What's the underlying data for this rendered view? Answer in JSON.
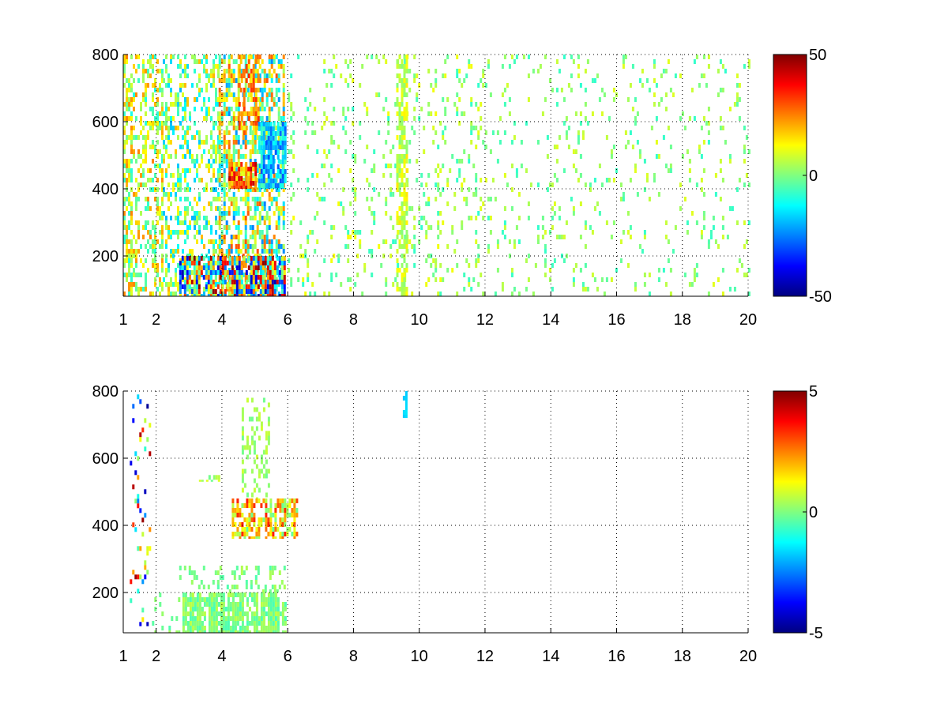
{
  "chart_data": [
    {
      "type": "heatmap",
      "title": "",
      "xlabel": "",
      "ylabel": "",
      "xlim": [
        1,
        20
      ],
      "ylim": [
        80,
        800
      ],
      "x_ticks": [
        1,
        2,
        4,
        6,
        8,
        10,
        12,
        14,
        16,
        18,
        20
      ],
      "y_ticks": [
        200,
        400,
        600,
        800
      ],
      "grid": true,
      "colormap": "jet",
      "clim": [
        -50,
        50
      ],
      "colorbar_ticks": [
        -50,
        0,
        50
      ],
      "colorbar_location": "right",
      "regions": [
        {
          "x": [
            1.0,
            2.2
          ],
          "y": [
            80,
            800
          ],
          "density": 0.5,
          "values": [
            -10,
            25
          ]
        },
        {
          "x": [
            2.2,
            3.9
          ],
          "y": [
            80,
            800
          ],
          "density": 0.35,
          "values": [
            -20,
            20
          ]
        },
        {
          "x": [
            3.9,
            5.9
          ],
          "y": [
            80,
            800
          ],
          "density": 0.55,
          "values": [
            -25,
            30
          ]
        },
        {
          "x": [
            4.2,
            5.0
          ],
          "y": [
            400,
            480
          ],
          "density": 0.8,
          "values": [
            10,
            45
          ]
        },
        {
          "x": [
            4.5,
            5.1
          ],
          "y": [
            560,
            800
          ],
          "density": 0.7,
          "values": [
            10,
            35
          ]
        },
        {
          "x": [
            5.1,
            5.9
          ],
          "y": [
            400,
            600
          ],
          "density": 0.7,
          "values": [
            -30,
            -5
          ]
        },
        {
          "x": [
            2.7,
            5.9
          ],
          "y": [
            80,
            200
          ],
          "density": 0.85,
          "values": [
            -45,
            50
          ]
        },
        {
          "x": [
            6.0,
            12.0
          ],
          "y": [
            80,
            800
          ],
          "density": 0.12,
          "values": [
            -8,
            12
          ]
        },
        {
          "x": [
            9.3,
            9.6
          ],
          "y": [
            80,
            800
          ],
          "density": 0.55,
          "values": [
            0,
            15
          ]
        },
        {
          "x": [
            12.0,
            20.0
          ],
          "y": [
            80,
            800
          ],
          "density": 0.08,
          "values": [
            -8,
            10
          ]
        }
      ]
    },
    {
      "type": "heatmap",
      "title": "",
      "xlabel": "",
      "ylabel": "",
      "xlim": [
        1,
        20
      ],
      "ylim": [
        80,
        800
      ],
      "x_ticks": [
        1,
        2,
        4,
        6,
        8,
        10,
        12,
        14,
        16,
        18,
        20
      ],
      "y_ticks": [
        200,
        400,
        600,
        800
      ],
      "grid": true,
      "colormap": "jet",
      "clim": [
        -5,
        5
      ],
      "colorbar_ticks": [
        -5,
        0,
        5
      ],
      "colorbar_location": "right",
      "regions": [
        {
          "x": [
            1.2,
            1.8
          ],
          "y": [
            100,
            790
          ],
          "density": 0.15,
          "values": [
            -5,
            5
          ]
        },
        {
          "x": [
            2.8,
            5.9
          ],
          "y": [
            80,
            200
          ],
          "density": 0.85,
          "values": [
            -0.6,
            0.6
          ]
        },
        {
          "x": [
            1.8,
            2.8
          ],
          "y": [
            80,
            200
          ],
          "density": 0.12,
          "values": [
            -0.5,
            0.5
          ]
        },
        {
          "x": [
            2.7,
            5.9
          ],
          "y": [
            200,
            280
          ],
          "density": 0.25,
          "values": [
            -0.5,
            0.5
          ]
        },
        {
          "x": [
            4.3,
            6.3
          ],
          "y": [
            360,
            480
          ],
          "density": 0.55,
          "values": [
            -0.3,
            3.5
          ]
        },
        {
          "x": [
            4.6,
            5.4
          ],
          "y": [
            480,
            780
          ],
          "density": 0.35,
          "values": [
            -0.2,
            0.8
          ]
        },
        {
          "x": [
            3.3,
            4.0
          ],
          "y": [
            530,
            550
          ],
          "density": 0.5,
          "values": [
            -0.2,
            1
          ]
        },
        {
          "x": [
            9.5,
            9.6
          ],
          "y": [
            720,
            800
          ],
          "density": 0.6,
          "values": [
            -1.8,
            -1.4
          ]
        }
      ]
    }
  ]
}
